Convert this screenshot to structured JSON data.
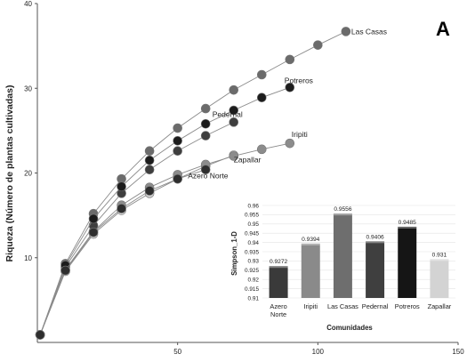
{
  "panel_letter": "A",
  "chart_data": [
    {
      "type": "line",
      "ylabel": "Riqueza (Número de plantas cultivadas)",
      "xlabel": "",
      "xlim": [
        0,
        150
      ],
      "ylim": [
        0,
        40
      ],
      "xticks": [
        50,
        100,
        150
      ],
      "yticks": [
        10,
        20,
        30,
        40
      ],
      "legend": "labels at series ends",
      "markers": "circle",
      "series": [
        {
          "name": "Las Casas",
          "color": "#6b6b6b",
          "x": [
            1,
            10,
            20,
            30,
            40,
            50,
            60,
            70,
            80,
            90,
            100,
            110
          ],
          "y": [
            0.9,
            9.3,
            15.2,
            19.3,
            22.6,
            25.3,
            27.6,
            29.8,
            31.6,
            33.4,
            35.1,
            36.7
          ]
        },
        {
          "name": "Potreros",
          "color": "#1c1c1c",
          "x": [
            1,
            10,
            20,
            30,
            40,
            50,
            60,
            70,
            80,
            90
          ],
          "y": [
            0.9,
            9.1,
            14.6,
            18.4,
            21.5,
            23.8,
            25.8,
            27.4,
            28.9,
            30.1
          ]
        },
        {
          "name": "Pedernal",
          "color": "#3e3e3e",
          "x": [
            1,
            10,
            20,
            30,
            40,
            50,
            60,
            70
          ],
          "y": [
            0.9,
            8.9,
            13.8,
            17.6,
            20.4,
            22.6,
            24.4,
            26.0
          ]
        },
        {
          "name": "Iripiti",
          "color": "#8c8c8c",
          "x": [
            1,
            10,
            20,
            30,
            40,
            50,
            60,
            70,
            80,
            90
          ],
          "y": [
            0.9,
            8.6,
            13.1,
            16.2,
            18.3,
            19.8,
            21.0,
            22.0,
            22.8,
            23.5
          ]
        },
        {
          "name": "Zapallar",
          "color": "#d0d0d0",
          "x": [
            1,
            10,
            20,
            30,
            40,
            50,
            60,
            70
          ],
          "y": [
            0.9,
            8.4,
            12.8,
            15.6,
            17.6,
            19.3,
            20.8,
            22.1
          ]
        },
        {
          "name": "Azero Norte",
          "color": "#2e2e2e",
          "x": [
            1,
            10,
            20,
            30,
            40,
            50,
            60
          ],
          "y": [
            0.9,
            8.5,
            13.0,
            15.8,
            17.9,
            19.3,
            20.4
          ]
        }
      ]
    },
    {
      "type": "bar",
      "xlabel": "Comunidades",
      "ylabel": "Simpson_1-D",
      "ylim": [
        0.91,
        0.96
      ],
      "yticks": [
        0.91,
        0.915,
        0.92,
        0.925,
        0.93,
        0.935,
        0.94,
        0.945,
        0.95,
        0.955,
        0.96
      ],
      "ytick_labels": [
        "0.91",
        "0.915",
        "0.92",
        "0.925",
        "0.93",
        "0.935",
        "0.94",
        "0.945",
        "0.95",
        "0.955",
        "0.96"
      ],
      "categories": [
        "Azero Norte",
        "Iripiti",
        "Las Casas",
        "Pedernal",
        "Potreros",
        "Zapallar"
      ],
      "values": [
        0.9272,
        0.9394,
        0.9556,
        0.9406,
        0.9485,
        0.931
      ],
      "value_labels": [
        "0.9272",
        "0.9394",
        "0.9556",
        "0.9406",
        "0.9485",
        "0.931"
      ],
      "colors": [
        "#3a3a3a",
        "#8a8a8a",
        "#6e6e6e",
        "#3f3f3f",
        "#151515",
        "#d3d3d3"
      ]
    }
  ]
}
